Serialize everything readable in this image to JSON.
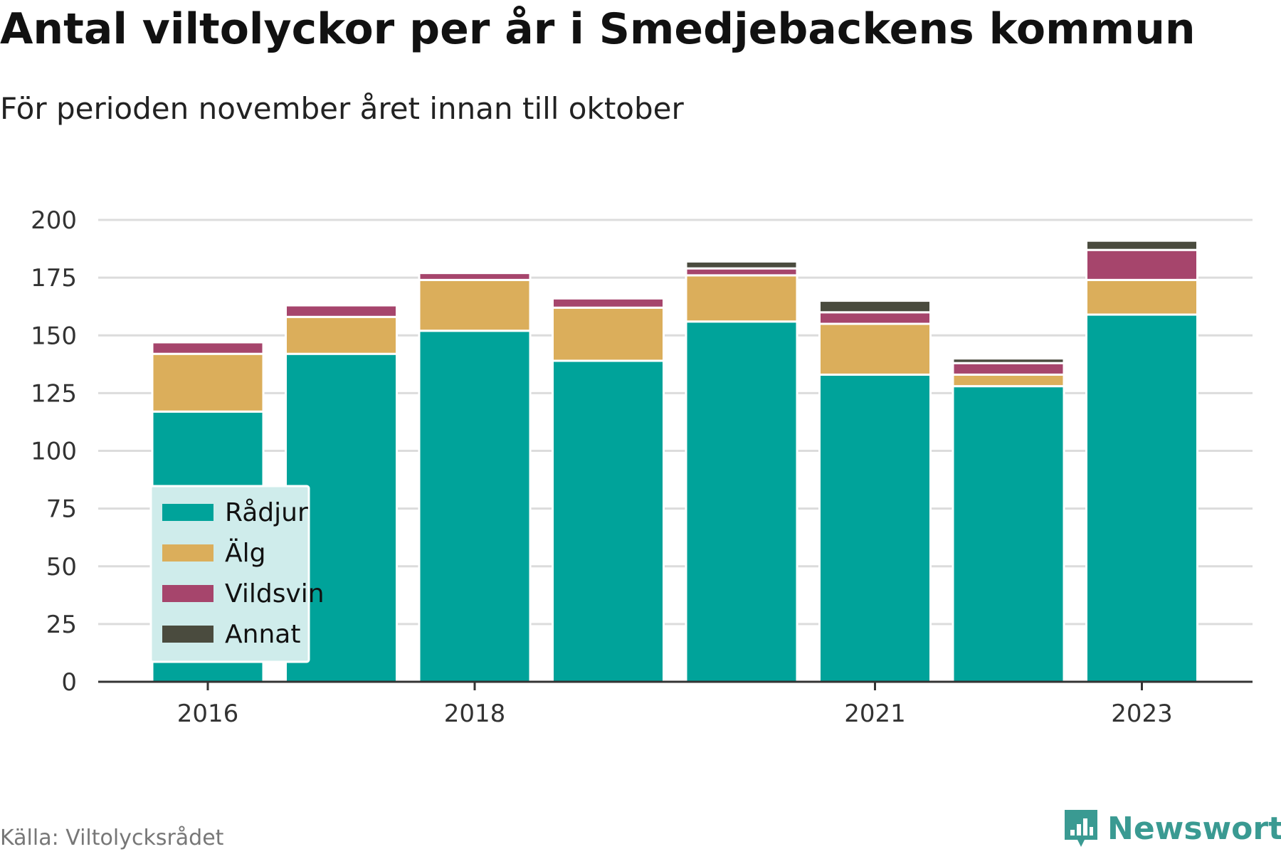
{
  "header": {
    "title": "Antal viltolyckor per år i Smedjebackens kommun",
    "subtitle": "För perioden november året innan till oktober"
  },
  "footer": {
    "source": "Källa: Viltolycksrådet",
    "brand": "Newsworthy",
    "brand_icon": "bar-chart-logo-icon"
  },
  "colors": {
    "Rådjur": "#00a39a",
    "Älg": "#dbae5b",
    "Vildsvin": "#a6456c",
    "Annat": "#4a4b3e",
    "legend_bg": "#cfeceb",
    "grid": "#dcdcdc",
    "axis": "#333333",
    "brand": "#3a9a92"
  },
  "chart_data": {
    "type": "bar",
    "stacked": true,
    "categories": [
      "2016",
      "2017",
      "2018",
      "2019",
      "2020",
      "2021",
      "2022",
      "2023"
    ],
    "x_tick_labels": [
      "2016",
      "2018",
      "2021",
      "2023"
    ],
    "series": [
      {
        "name": "Rådjur",
        "values": [
          117,
          142,
          152,
          139,
          156,
          133,
          128,
          159
        ]
      },
      {
        "name": "Älg",
        "values": [
          25,
          16,
          22,
          23,
          20,
          22,
          5,
          15
        ]
      },
      {
        "name": "Vildsvin",
        "values": [
          5,
          5,
          3,
          4,
          3,
          5,
          5,
          13
        ]
      },
      {
        "name": "Annat",
        "values": [
          0,
          0,
          0,
          0,
          3,
          5,
          2,
          4
        ]
      }
    ],
    "ylim": [
      0,
      200
    ],
    "yticks": [
      0,
      25,
      50,
      75,
      100,
      125,
      150,
      175,
      200
    ],
    "xlabel": "",
    "ylabel": "",
    "grid": true,
    "legend_position": "bottom-left"
  }
}
